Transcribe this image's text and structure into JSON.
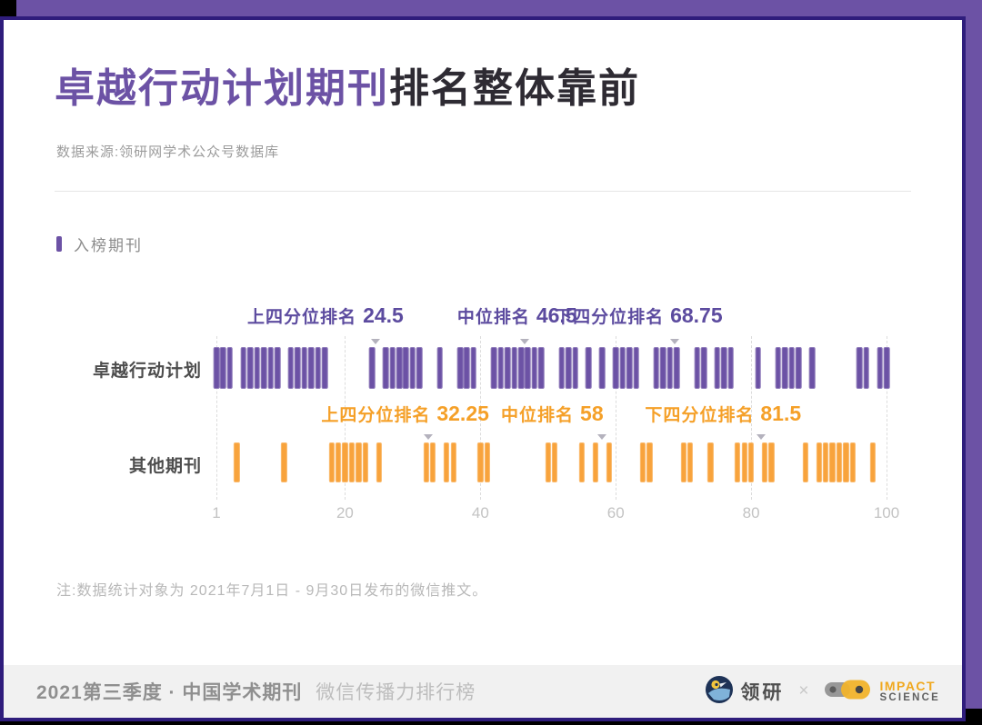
{
  "header": {
    "title_highlight": "卓越行动计划期刊",
    "title_rest": "排名整体靠前",
    "source": "数据来源:领研网学术公众号数据库"
  },
  "legend": {
    "label": "入榜期刊"
  },
  "chart_data": {
    "type": "strip",
    "x_axis": {
      "min": 1,
      "max": 100,
      "ticks": [
        1,
        20,
        40,
        60,
        80,
        100
      ],
      "gridlines": "dashed"
    },
    "series": [
      {
        "name": "卓越行动计划",
        "color": "#6C52A5",
        "ranks": [
          1,
          2,
          3,
          5,
          6,
          7,
          8,
          9,
          10,
          12,
          13,
          14,
          15,
          16,
          17,
          24,
          26,
          27,
          28,
          29,
          30,
          31,
          34,
          37,
          38,
          39,
          42,
          43,
          44,
          45,
          46,
          47,
          48,
          49,
          52,
          53,
          54,
          56,
          58,
          60,
          61,
          62,
          63,
          66,
          67,
          68,
          69,
          72,
          73,
          75,
          76,
          77,
          81,
          84,
          85,
          86,
          87,
          89,
          96,
          97,
          99,
          100
        ],
        "annotations": [
          {
            "label": "上四分位排名",
            "value": "24.5",
            "at": 24.5
          },
          {
            "label": "中位排名",
            "value": "46.5",
            "at": 46.5
          },
          {
            "label": "下四分位排名",
            "value": "68.75",
            "at": 68.75
          }
        ]
      },
      {
        "name": "其他期刊",
        "color": "#F8A33C",
        "ranks": [
          4,
          11,
          18,
          19,
          20,
          21,
          22,
          23,
          25,
          32,
          33,
          35,
          36,
          40,
          41,
          50,
          51,
          55,
          57,
          59,
          64,
          65,
          70,
          71,
          74,
          78,
          79,
          80,
          82,
          83,
          88,
          90,
          91,
          92,
          93,
          94,
          95,
          98
        ],
        "annotations": [
          {
            "label": "上四分位排名",
            "value": "32.25",
            "at": 32.25
          },
          {
            "label": "中位排名",
            "value": "58",
            "at": 58
          },
          {
            "label": "下四分位排名",
            "value": "81.5",
            "at": 81.5
          }
        ]
      }
    ]
  },
  "note": "注:数据统计对象为 2021年7月1日 - 9月30日发布的微信推文。",
  "footer": {
    "title_bold": "2021第三季度 · 中国学术期刊",
    "title_light": "微信传播力排行榜",
    "logo1": "领研",
    "separator": "×",
    "logo2_line1": "IMPACT",
    "logo2_line2": "SCIENCE"
  },
  "colors": {
    "purple": "#6C52A5",
    "purple_text": "#5C4B9F",
    "indigo": "#2F1D7C",
    "orange": "#F8A33C",
    "orange_text": "#F5A028",
    "title_dark": "#2E2B33"
  }
}
